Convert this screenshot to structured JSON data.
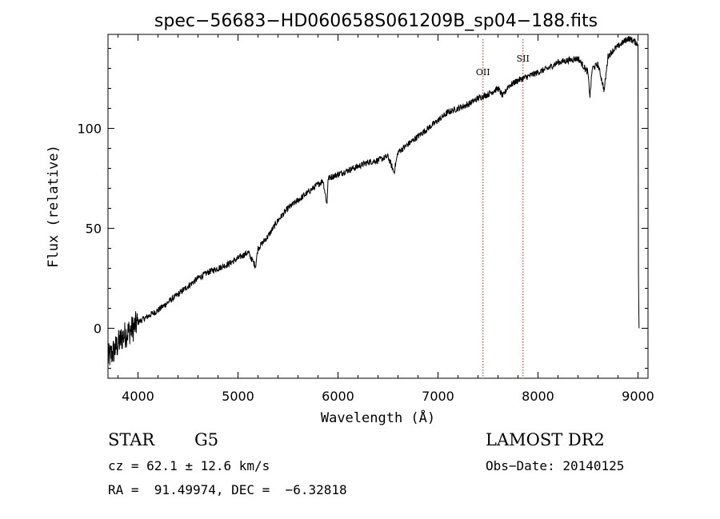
{
  "chart_data": {
    "type": "line",
    "title": "spec−56683−HD060658S061209B_sp04−188.fits",
    "xlabel": "Wavelength (Å)",
    "ylabel": "Flux (relative)",
    "xlim": [
      3700,
      9100
    ],
    "ylim": [
      -25,
      147
    ],
    "x_ticks": [
      4000,
      5000,
      6000,
      7000,
      8000,
      9000
    ],
    "y_ticks": [
      0,
      50,
      100
    ],
    "series": [
      {
        "color": "#000000",
        "x": [
          3700,
          3750,
          3800,
          3850,
          3900,
          3950,
          4000,
          4100,
          4200,
          4300,
          4400,
          4500,
          4600,
          4700,
          4800,
          4900,
          5000,
          5100,
          5175,
          5200,
          5300,
          5400,
          5500,
          5600,
          5700,
          5800,
          5850,
          5890,
          5900,
          6000,
          6100,
          6200,
          6300,
          6400,
          6500,
          6560,
          6600,
          6700,
          6800,
          6900,
          7000,
          7100,
          7200,
          7300,
          7400,
          7500,
          7600,
          7650,
          7700,
          7800,
          7900,
          8000,
          8100,
          8200,
          8300,
          8400,
          8498,
          8520,
          8542,
          8600,
          8662,
          8700,
          8750,
          8800,
          8850,
          8900,
          8950,
          9000,
          9005,
          9010
        ],
        "y": [
          -15,
          -12,
          -8,
          -4,
          -2,
          0,
          3,
          6,
          9,
          13,
          17,
          21,
          25,
          28,
          30,
          32,
          35,
          38,
          31,
          40,
          46,
          54,
          60,
          64,
          68,
          72,
          74,
          62,
          75,
          77,
          79,
          81,
          83,
          84,
          86,
          78,
          88,
          92,
          96,
          100,
          104,
          108,
          110,
          112,
          115,
          117,
          120,
          116,
          121,
          124,
          126,
          128,
          130,
          133,
          134,
          135,
          128,
          116,
          130,
          132,
          119,
          136,
          139,
          141,
          143,
          145,
          144,
          142,
          28,
          0
        ]
      }
    ],
    "annotations": [
      {
        "label": "OII",
        "x": 7450
      },
      {
        "label": "SII",
        "x": 7850
      }
    ],
    "reference_line_color": "#b22222"
  },
  "info": {
    "object_class": "STAR",
    "subclass": "G5",
    "survey": "LAMOST DR2",
    "cz_line": "cz = 62.1 ± 12.6 km/s",
    "obs_date_line": "Obs−Date: 20140125",
    "coords_line": "RA =  91.49974, DEC =  −6.32818"
  }
}
